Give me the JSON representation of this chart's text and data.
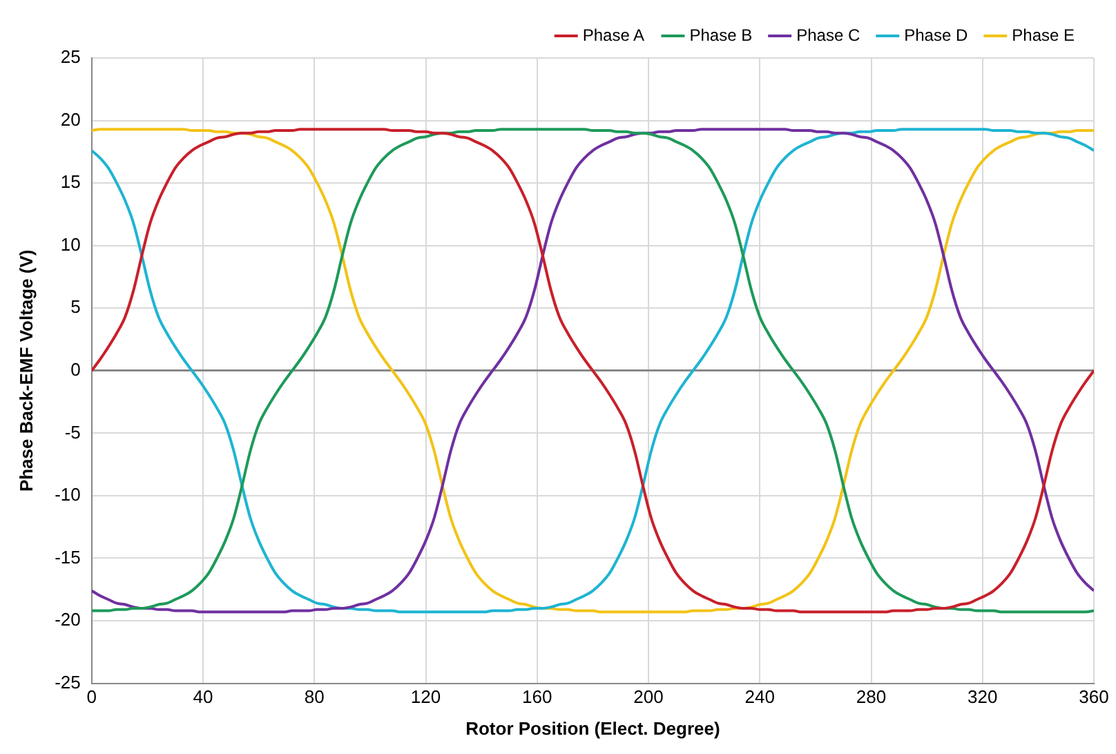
{
  "chart_data": {
    "type": "line",
    "xlabel": "Rotor Position (Elect. Degree)",
    "ylabel": "Phase Back-EMF Voltage (V)",
    "xlim": [
      0,
      360
    ],
    "xticks": [
      0,
      40,
      80,
      120,
      160,
      200,
      240,
      280,
      320,
      360
    ],
    "ylim": [
      -25,
      25
    ],
    "yticks": [
      -25,
      -20,
      -15,
      -10,
      -5,
      0,
      5,
      10,
      15,
      20,
      25
    ],
    "grid": true,
    "legend": "top right",
    "marker": "none",
    "line_style": "solid",
    "x": [
      0,
      3,
      6,
      9,
      12,
      15,
      18,
      21,
      24,
      27,
      30,
      33,
      36,
      39,
      42,
      45,
      48,
      51,
      54,
      57,
      60,
      63,
      66,
      69,
      72,
      75,
      78,
      81,
      84,
      87,
      90,
      93,
      96,
      99,
      102,
      105,
      108,
      111,
      114,
      117,
      120,
      123,
      126,
      129,
      132,
      135,
      138,
      141,
      144,
      147,
      150,
      153,
      156,
      159,
      162,
      165,
      168,
      171,
      174,
      177,
      180,
      183,
      186,
      189,
      192,
      195,
      198,
      201,
      204,
      207,
      210,
      213,
      216,
      219,
      222,
      225,
      228,
      231,
      234,
      237,
      240,
      243,
      246,
      249,
      252,
      255,
      258,
      261,
      264,
      267,
      270,
      273,
      276,
      279,
      282,
      285,
      288,
      291,
      294,
      297,
      300,
      303,
      306,
      309,
      312,
      315,
      318,
      321,
      324,
      327,
      330,
      333,
      336,
      339,
      342,
      345,
      348,
      351,
      354,
      357,
      360
    ],
    "series": [
      {
        "name": "Phase A",
        "color": "#c8202a",
        "values": [
          0,
          0.9,
          1.9,
          3.0,
          4.3,
          6.4,
          9.2,
          11.8,
          13.6,
          15.0,
          16.2,
          17.0,
          17.6,
          18.0,
          18.3,
          18.6,
          18.7,
          18.9,
          19.0,
          19.0,
          19.1,
          19.1,
          19.2,
          19.2,
          19.2,
          19.3,
          19.3,
          19.3,
          19.3,
          19.3,
          19.3,
          19.3,
          19.3,
          19.3,
          19.3,
          19.3,
          19.2,
          19.2,
          19.2,
          19.1,
          19.1,
          19.0,
          19.0,
          18.9,
          18.7,
          18.6,
          18.3,
          18.0,
          17.6,
          17.0,
          16.2,
          15.0,
          13.6,
          11.8,
          9.2,
          6.4,
          4.3,
          3.0,
          1.9,
          0.9,
          0,
          -0.9,
          -1.9,
          -3.0,
          -4.3,
          -6.4,
          -9.2,
          -11.8,
          -13.6,
          -15.0,
          -16.2,
          -17.0,
          -17.6,
          -18.0,
          -18.3,
          -18.6,
          -18.7,
          -18.9,
          -19.0,
          -19.0,
          -19.1,
          -19.1,
          -19.2,
          -19.2,
          -19.2,
          -19.3,
          -19.3,
          -19.3,
          -19.3,
          -19.3,
          -19.3,
          -19.3,
          -19.3,
          -19.3,
          -19.3,
          -19.3,
          -19.2,
          -19.2,
          -19.2,
          -19.1,
          -19.1,
          -19.0,
          -19.0,
          -18.9,
          -18.7,
          -18.6,
          -18.3,
          -18.0,
          -17.6,
          -17.0,
          -16.2,
          -15.0,
          -13.6,
          -11.8,
          -9.2,
          -6.4,
          -4.3,
          -3.0,
          -1.9,
          -0.9,
          0
        ]
      },
      {
        "name": "Phase B",
        "color": "#1e9a5a",
        "values": [
          -19.2,
          -19.2,
          -19.2,
          -19.1,
          -19.1,
          -19.0,
          -19.0,
          -18.9,
          -18.7,
          -18.6,
          -18.3,
          -18.0,
          -17.6,
          -17.0,
          -16.2,
          -15.0,
          -13.6,
          -11.8,
          -9.2,
          -6.4,
          -4.3,
          -3.0,
          -1.9,
          -0.9,
          0,
          0.9,
          1.9,
          3.0,
          4.3,
          6.4,
          9.2,
          11.8,
          13.6,
          15.0,
          16.2,
          17.0,
          17.6,
          18.0,
          18.3,
          18.6,
          18.7,
          18.9,
          19.0,
          19.0,
          19.1,
          19.1,
          19.2,
          19.2,
          19.2,
          19.3,
          19.3,
          19.3,
          19.3,
          19.3,
          19.3,
          19.3,
          19.3,
          19.3,
          19.3,
          19.3,
          19.2,
          19.2,
          19.2,
          19.1,
          19.1,
          19.0,
          19.0,
          18.9,
          18.7,
          18.6,
          18.3,
          18.0,
          17.6,
          17.0,
          16.2,
          15.0,
          13.6,
          11.8,
          9.2,
          6.4,
          4.3,
          3.0,
          1.9,
          0.9,
          0,
          -0.9,
          -1.9,
          -3.0,
          -4.3,
          -6.4,
          -9.2,
          -11.8,
          -13.6,
          -15.0,
          -16.2,
          -17.0,
          -17.6,
          -18.0,
          -18.3,
          -18.6,
          -18.7,
          -18.9,
          -19.0,
          -19.0,
          -19.1,
          -19.1,
          -19.2,
          -19.2,
          -19.2,
          -19.3,
          -19.3,
          -19.3,
          -19.3,
          -19.3,
          -19.3,
          -19.3,
          -19.3,
          -19.3,
          -19.3,
          -19.3,
          -19.2
        ]
      },
      {
        "name": "Phase C",
        "color": "#7030a0",
        "values": [
          -17.6,
          -18.0,
          -18.3,
          -18.6,
          -18.7,
          -18.9,
          -19.0,
          -19.0,
          -19.1,
          -19.1,
          -19.2,
          -19.2,
          -19.2,
          -19.3,
          -19.3,
          -19.3,
          -19.3,
          -19.3,
          -19.3,
          -19.3,
          -19.3,
          -19.3,
          -19.3,
          -19.3,
          -19.2,
          -19.2,
          -19.2,
          -19.1,
          -19.1,
          -19.0,
          -19.0,
          -18.9,
          -18.7,
          -18.6,
          -18.3,
          -18.0,
          -17.6,
          -17.0,
          -16.2,
          -15.0,
          -13.6,
          -11.8,
          -9.2,
          -6.4,
          -4.3,
          -3.0,
          -1.9,
          -0.9,
          0,
          0.9,
          1.9,
          3.0,
          4.3,
          6.4,
          9.2,
          11.8,
          13.6,
          15.0,
          16.2,
          17.0,
          17.6,
          18.0,
          18.3,
          18.6,
          18.7,
          18.9,
          19.0,
          19.0,
          19.1,
          19.1,
          19.2,
          19.2,
          19.2,
          19.3,
          19.3,
          19.3,
          19.3,
          19.3,
          19.3,
          19.3,
          19.3,
          19.3,
          19.3,
          19.3,
          19.2,
          19.2,
          19.2,
          19.1,
          19.1,
          19.0,
          19.0,
          18.9,
          18.7,
          18.6,
          18.3,
          18.0,
          17.6,
          17.0,
          16.2,
          15.0,
          13.6,
          11.8,
          9.2,
          6.4,
          4.3,
          3.0,
          1.9,
          0.9,
          0,
          -0.9,
          -1.9,
          -3.0,
          -4.3,
          -6.4,
          -9.2,
          -11.8,
          -13.6,
          -15.0,
          -16.2,
          -17.0,
          -17.6
        ]
      },
      {
        "name": "Phase D",
        "color": "#1fb4d2",
        "values": [
          17.6,
          17.0,
          16.2,
          15.0,
          13.6,
          11.8,
          9.2,
          6.4,
          4.3,
          3.0,
          1.9,
          0.9,
          0,
          -0.9,
          -1.9,
          -3.0,
          -4.3,
          -6.4,
          -9.2,
          -11.8,
          -13.6,
          -15.0,
          -16.2,
          -17.0,
          -17.6,
          -18.0,
          -18.3,
          -18.6,
          -18.7,
          -18.9,
          -19.0,
          -19.0,
          -19.1,
          -19.1,
          -19.2,
          -19.2,
          -19.2,
          -19.3,
          -19.3,
          -19.3,
          -19.3,
          -19.3,
          -19.3,
          -19.3,
          -19.3,
          -19.3,
          -19.3,
          -19.3,
          -19.2,
          -19.2,
          -19.2,
          -19.1,
          -19.1,
          -19.0,
          -19.0,
          -18.9,
          -18.7,
          -18.6,
          -18.3,
          -18.0,
          -17.6,
          -17.0,
          -16.2,
          -15.0,
          -13.6,
          -11.8,
          -9.2,
          -6.4,
          -4.3,
          -3.0,
          -1.9,
          -0.9,
          0,
          0.9,
          1.9,
          3.0,
          4.3,
          6.4,
          9.2,
          11.8,
          13.6,
          15.0,
          16.2,
          17.0,
          17.6,
          18.0,
          18.3,
          18.6,
          18.7,
          18.9,
          19.0,
          19.0,
          19.1,
          19.1,
          19.2,
          19.2,
          19.2,
          19.3,
          19.3,
          19.3,
          19.3,
          19.3,
          19.3,
          19.3,
          19.3,
          19.3,
          19.3,
          19.3,
          19.2,
          19.2,
          19.2,
          19.1,
          19.1,
          19.0,
          19.0,
          18.9,
          18.7,
          18.6,
          18.3,
          18.0,
          17.6
        ]
      },
      {
        "name": "Phase E",
        "color": "#f2c318",
        "values": [
          19.2,
          19.3,
          19.3,
          19.3,
          19.3,
          19.3,
          19.3,
          19.3,
          19.3,
          19.3,
          19.3,
          19.3,
          19.2,
          19.2,
          19.2,
          19.1,
          19.1,
          19.0,
          19.0,
          18.9,
          18.7,
          18.6,
          18.3,
          18.0,
          17.6,
          17.0,
          16.2,
          15.0,
          13.6,
          11.8,
          9.2,
          6.4,
          4.3,
          3.0,
          1.9,
          0.9,
          0,
          -0.9,
          -1.9,
          -3.0,
          -4.3,
          -6.4,
          -9.2,
          -11.8,
          -13.6,
          -15.0,
          -16.2,
          -17.0,
          -17.6,
          -18.0,
          -18.3,
          -18.6,
          -18.7,
          -18.9,
          -19.0,
          -19.0,
          -19.1,
          -19.1,
          -19.2,
          -19.2,
          -19.2,
          -19.3,
          -19.3,
          -19.3,
          -19.3,
          -19.3,
          -19.3,
          -19.3,
          -19.3,
          -19.3,
          -19.3,
          -19.3,
          -19.2,
          -19.2,
          -19.2,
          -19.1,
          -19.1,
          -19.0,
          -19.0,
          -18.9,
          -18.7,
          -18.6,
          -18.3,
          -18.0,
          -17.6,
          -17.0,
          -16.2,
          -15.0,
          -13.6,
          -11.8,
          -9.2,
          -6.4,
          -4.3,
          -3.0,
          -1.9,
          -0.9,
          0,
          0.9,
          1.9,
          3.0,
          4.3,
          6.4,
          9.2,
          11.8,
          13.6,
          15.0,
          16.2,
          17.0,
          17.6,
          18.0,
          18.3,
          18.6,
          18.7,
          18.9,
          19.0,
          19.0,
          19.1,
          19.1,
          19.2,
          19.2,
          19.2
        ]
      }
    ]
  }
}
